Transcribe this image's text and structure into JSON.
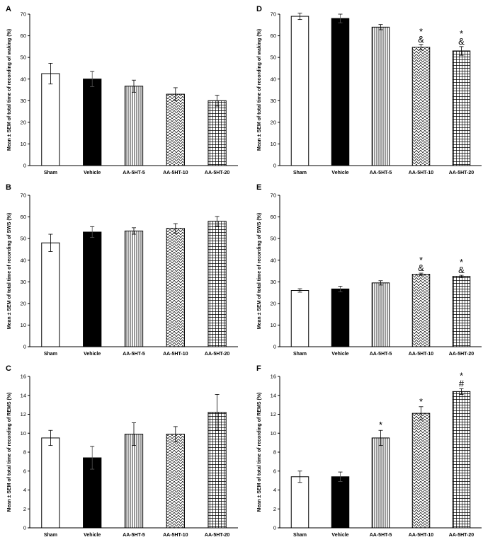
{
  "figure": {
    "categories": [
      "Sham",
      "Vehicle",
      "AA-5HT-5",
      "AA-5HT-10",
      "AA-5HT-20"
    ],
    "bar_fills": [
      "white",
      "black",
      "vlines",
      "diag",
      "grid"
    ],
    "colors": {
      "axis": "#000000",
      "bar_stroke": "#000000",
      "background": "#ffffff"
    }
  },
  "chart_data": [
    {
      "type": "bar",
      "panel": "A",
      "ylabel": "Mean ± SEM of total time of recording of waking (%)",
      "ylim": [
        0,
        70
      ],
      "yticks": [
        0,
        10,
        20,
        30,
        40,
        50,
        60,
        70
      ],
      "categories": [
        "Sham",
        "Vehicle",
        "AA-5HT-5",
        "AA-5HT-10",
        "AA-5HT-20"
      ],
      "values": [
        42.5,
        40,
        36.7,
        33,
        30
      ],
      "errors": [
        4.8,
        3.5,
        2.8,
        3,
        2.5
      ],
      "annotations": [
        "",
        "",
        "",
        "",
        ""
      ]
    },
    {
      "type": "bar",
      "panel": "D",
      "ylabel": "Mean ± SEM of total time of recording of waking (%)",
      "ylim": [
        0,
        70
      ],
      "yticks": [
        0,
        10,
        20,
        30,
        40,
        50,
        60,
        70
      ],
      "categories": [
        "Sham",
        "Vehicle",
        "AA-5HT-5",
        "AA-5HT-10",
        "AA-5HT-20"
      ],
      "values": [
        69,
        68,
        64,
        54.7,
        53
      ],
      "errors": [
        1.5,
        2,
        1.2,
        1.3,
        2
      ],
      "annotations": [
        "",
        "",
        "",
        "*\n&",
        "*\n&"
      ]
    },
    {
      "type": "bar",
      "panel": "B",
      "ylabel": "Mean ± SEM of total time of recording of SWS (%)",
      "ylim": [
        0,
        70
      ],
      "yticks": [
        0,
        10,
        20,
        30,
        40,
        50,
        60,
        70
      ],
      "categories": [
        "Sham",
        "Vehicle",
        "AA-5HT-5",
        "AA-5HT-10",
        "AA-5HT-20"
      ],
      "values": [
        48,
        53,
        53.5,
        54.7,
        58
      ],
      "errors": [
        4,
        2.5,
        1.5,
        2.2,
        2.2
      ],
      "annotations": [
        "",
        "",
        "",
        "",
        ""
      ]
    },
    {
      "type": "bar",
      "panel": "E",
      "ylabel": "Mean ± SEM of total time of recording of SWS (%)",
      "ylim": [
        0,
        70
      ],
      "yticks": [
        0,
        10,
        20,
        30,
        40,
        50,
        60,
        70
      ],
      "categories": [
        "Sham",
        "Vehicle",
        "AA-5HT-5",
        "AA-5HT-10",
        "AA-5HT-20"
      ],
      "values": [
        26,
        26.7,
        29.5,
        33.5,
        32.5
      ],
      "errors": [
        0.8,
        1.3,
        1,
        0.5,
        0.5
      ],
      "annotations": [
        "",
        "",
        "",
        "*\n&",
        "*\n&"
      ]
    },
    {
      "type": "bar",
      "panel": "C",
      "ylabel": "Mean ± SEM of total time of recording of REMS (%)",
      "ylim": [
        0,
        16
      ],
      "yticks": [
        0,
        2,
        4,
        6,
        8,
        10,
        12,
        14,
        16
      ],
      "categories": [
        "Sham",
        "Vehicle",
        "AA-5HT-5",
        "AA-5HT-10",
        "AA-5HT-20"
      ],
      "values": [
        9.5,
        7.4,
        9.9,
        9.9,
        12.2
      ],
      "errors": [
        0.8,
        1.2,
        1.2,
        0.8,
        1.9
      ],
      "annotations": [
        "",
        "",
        "",
        "",
        ""
      ]
    },
    {
      "type": "bar",
      "panel": "F",
      "ylabel": "Mean ± SEM of total time of recording of REMS (%)",
      "ylim": [
        0,
        16
      ],
      "yticks": [
        0,
        2,
        4,
        6,
        8,
        10,
        12,
        14,
        16
      ],
      "categories": [
        "Sham",
        "Vehicle",
        "AA-5HT-5",
        "AA-5HT-10",
        "AA-5HT-20"
      ],
      "values": [
        5.4,
        5.4,
        9.5,
        12.1,
        14.4
      ],
      "errors": [
        0.6,
        0.5,
        0.8,
        0.7,
        0.3
      ],
      "annotations": [
        "",
        "",
        "*",
        "*",
        "*\n#"
      ]
    }
  ]
}
